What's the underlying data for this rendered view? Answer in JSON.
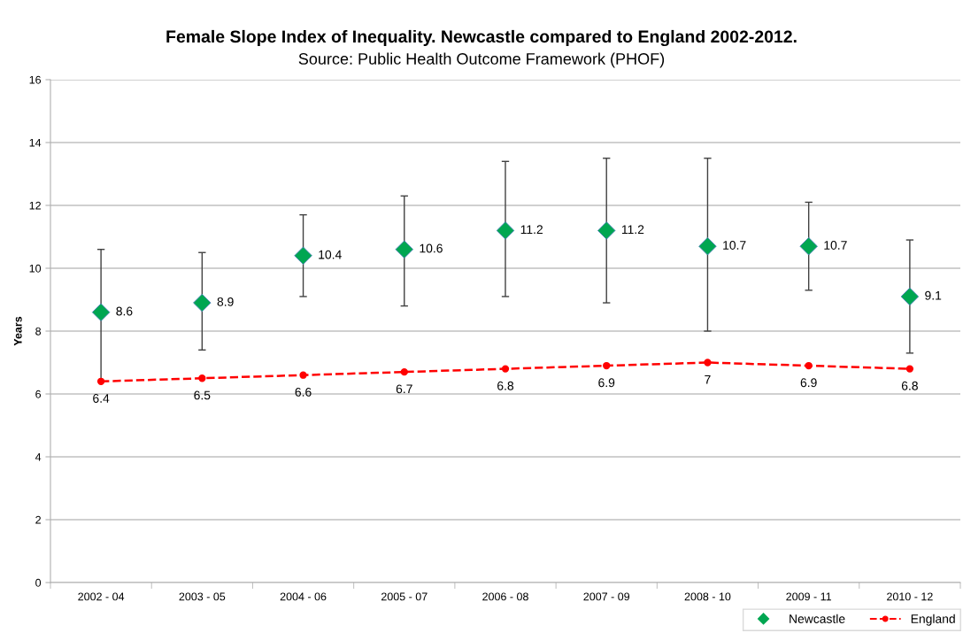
{
  "chart_data": {
    "type": "scatter",
    "title": "Female Slope Index of Inequality. Newcastle compared to England 2002-2012.",
    "subtitle": "Source: Public Health Outcome Framework (PHOF)",
    "ylabel": "Years",
    "categories": [
      "2002 - 04",
      "2003 - 05",
      "2004 - 06",
      "2005 - 07",
      "2006 - 08",
      "2007 - 09",
      "2008 - 10",
      "2009 - 11",
      "2010 - 12"
    ],
    "series": [
      {
        "name": "Newcastle",
        "marker": "diamond",
        "color": "#00a651",
        "values": [
          8.6,
          8.9,
          10.4,
          10.6,
          11.2,
          11.2,
          10.7,
          10.7,
          9.1
        ],
        "errors": [
          [
            6.4,
            10.6
          ],
          [
            7.4,
            10.5
          ],
          [
            9.1,
            11.7
          ],
          [
            8.8,
            12.3
          ],
          [
            9.1,
            13.4
          ],
          [
            8.9,
            13.5
          ],
          [
            8.0,
            13.5
          ],
          [
            9.3,
            12.1
          ],
          [
            7.3,
            10.9
          ]
        ]
      },
      {
        "name": "England",
        "type": "line",
        "marker": "circle",
        "line_style": "dashed",
        "color": "#ff0000",
        "values": [
          6.4,
          6.5,
          6.6,
          6.7,
          6.8,
          6.9,
          7,
          6.9,
          6.8
        ]
      }
    ],
    "ylim": [
      0,
      16
    ],
    "yticks": [
      0,
      2,
      4,
      6,
      8,
      10,
      12,
      14,
      16
    ],
    "grid": "y",
    "legend": "bottom right",
    "data_labels": true
  }
}
